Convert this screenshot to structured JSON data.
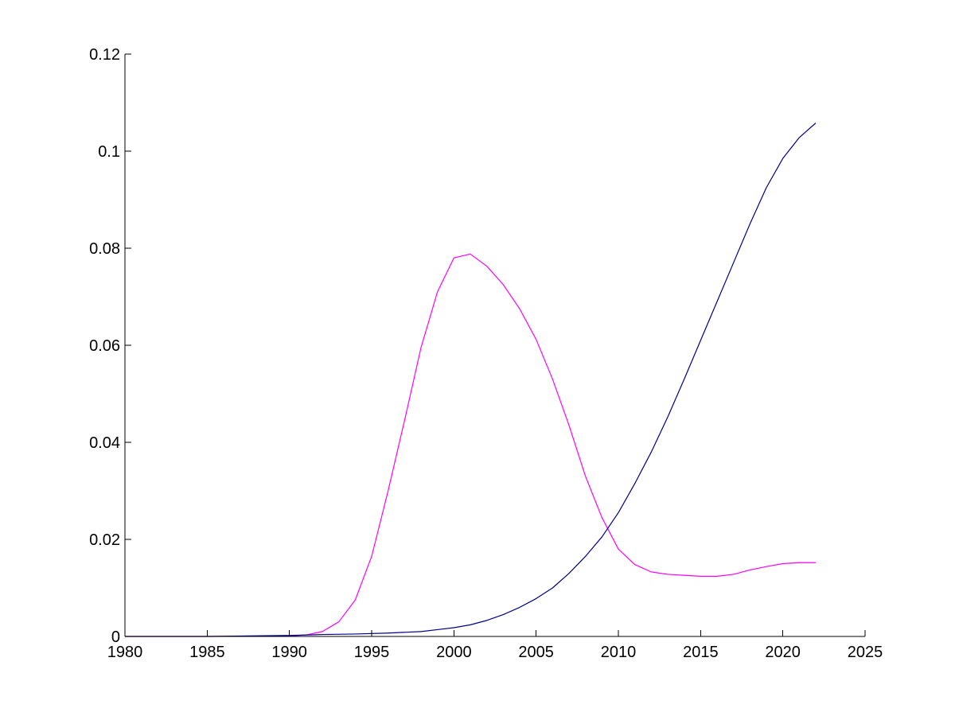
{
  "chart_data": {
    "type": "line",
    "title": "",
    "xlabel": "",
    "ylabel": "",
    "xlim": [
      1980,
      2025
    ],
    "ylim": [
      0,
      0.12
    ],
    "grid": false,
    "x_ticks": [
      1980,
      1985,
      1990,
      1995,
      2000,
      2005,
      2010,
      2015,
      2020,
      2025
    ],
    "x_tick_labels": [
      "1980",
      "1985",
      "1990",
      "1995",
      "2000",
      "2005",
      "2010",
      "2015",
      "2020",
      "2025"
    ],
    "y_ticks": [
      0,
      0.02,
      0.04,
      0.06,
      0.08,
      0.1,
      0.12
    ],
    "y_tick_labels": [
      "0",
      "0.02",
      "0.04",
      "0.06",
      "0.08",
      "0.1",
      "0.12"
    ],
    "series": [
      {
        "color": "#ff00ff",
        "x": [
          1980,
          1985,
          1990,
          1991,
          1992,
          1993,
          1994,
          1995,
          1996,
          1997,
          1998,
          1999,
          2000,
          2001,
          2002,
          2003,
          2004,
          2005,
          2006,
          2007,
          2008,
          2009,
          2010,
          2011,
          2012,
          2013,
          2014,
          2015,
          2016,
          2017,
          2018,
          2019,
          2020,
          2021,
          2022
        ],
        "y": [
          0,
          0,
          0.0001,
          0.0003,
          0.001,
          0.003,
          0.0075,
          0.0165,
          0.03,
          0.0445,
          0.0595,
          0.071,
          0.078,
          0.0788,
          0.0763,
          0.0725,
          0.0675,
          0.0612,
          0.053,
          0.0435,
          0.033,
          0.0245,
          0.018,
          0.0148,
          0.0133,
          0.0128,
          0.0126,
          0.0124,
          0.0124,
          0.0128,
          0.0137,
          0.0144,
          0.015,
          0.0152,
          0.0152
        ]
      },
      {
        "color": "#00008b",
        "x": [
          1980,
          1985,
          1990,
          1992,
          1994,
          1996,
          1998,
          1999,
          2000,
          2001,
          2002,
          2003,
          2004,
          2005,
          2006,
          2007,
          2008,
          2009,
          2010,
          2011,
          2012,
          2013,
          2014,
          2015,
          2016,
          2017,
          2018,
          2019,
          2020,
          2021,
          2022
        ],
        "y": [
          0,
          0,
          0.0002,
          0.0004,
          0.0005,
          0.0007,
          0.001,
          0.0014,
          0.0018,
          0.0024,
          0.0033,
          0.0045,
          0.006,
          0.0078,
          0.01,
          0.013,
          0.0165,
          0.0205,
          0.0255,
          0.0315,
          0.038,
          0.0452,
          0.053,
          0.061,
          0.069,
          0.077,
          0.085,
          0.0925,
          0.0985,
          0.1028,
          0.1058
        ]
      }
    ]
  }
}
